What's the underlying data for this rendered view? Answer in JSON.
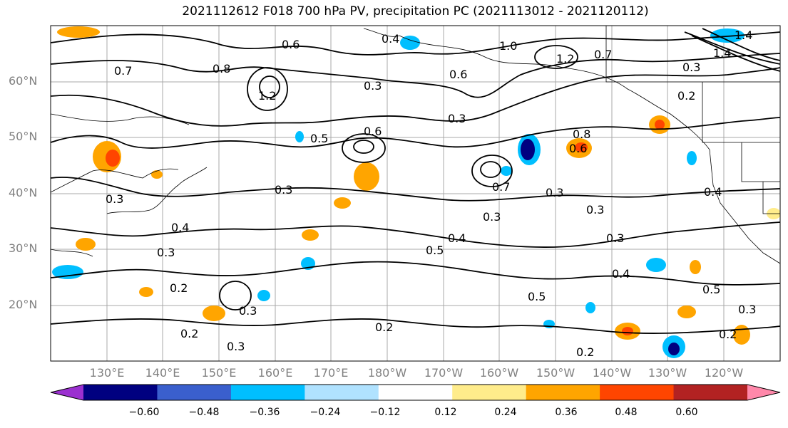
{
  "title": "2021112612 F018 700 hPa PV, precipitation PC (2021113012 - 2021120112)",
  "lat_labels": [
    "60°N",
    "50°N",
    "40°N",
    "30°N",
    "20°N"
  ],
  "lon_labels": [
    "130°E",
    "140°E",
    "150°E",
    "160°E",
    "170°E",
    "180°W",
    "170°W",
    "160°W",
    "150°W",
    "140°W",
    "130°W",
    "120°W"
  ],
  "contour_labels": [
    "0.8",
    "0.7",
    "0.6",
    "0.4",
    "0.3",
    "0.5",
    "0.2",
    "1.0",
    "1.2",
    "1.4"
  ],
  "colorbar": {
    "labels": [
      "−0.60",
      "−0.48",
      "−0.36",
      "−0.24",
      "−0.12",
      "0.12",
      "0.24",
      "0.36",
      "0.48",
      "0.60"
    ],
    "colors": [
      "#9b30d0",
      "#000080",
      "#3a5fcd",
      "#00bfff",
      "#b0e2ff",
      "#ffffff",
      "#ffec8b",
      "#ffa500",
      "#ff4500",
      "#b22222",
      "#ff88aa"
    ]
  },
  "colors": {
    "contour": "#000000",
    "grid": "#9e9e9e",
    "coast": "#000000"
  }
}
